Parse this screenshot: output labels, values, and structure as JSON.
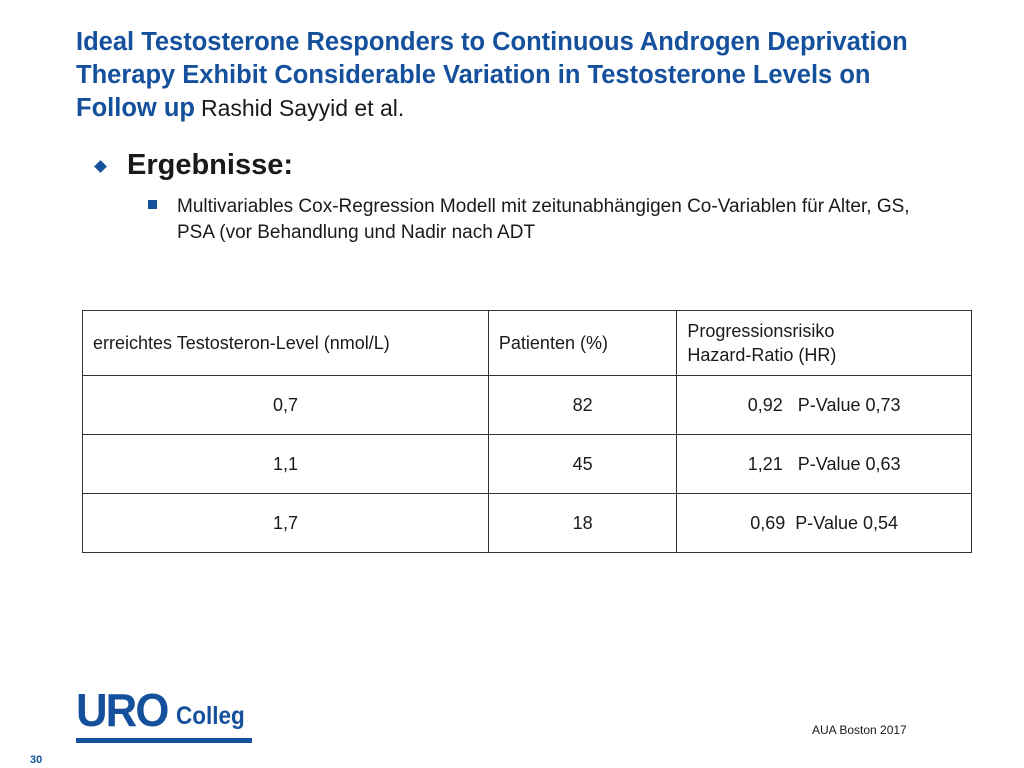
{
  "slide": {
    "title": "Ideal Testosterone Responders to Continuous Androgen Deprivation Therapy Exhibit Considerable Variation in Testosterone Levels on Follow up",
    "author": "Rashid Sayyid et al.",
    "section_heading": "Ergebnisse:",
    "sub_bullet": "Multivariables Cox-Regression Modell mit zeitunabhängigen Co-Variablen für Alter, GS, PSA (vor Behandlung und Nadir nach ADT"
  },
  "table": {
    "headers": {
      "level": "erreichtes Testosteron-Level (nmol/L)",
      "patients": "Patienten (%)",
      "risk_line1": "Progressionsrisiko",
      "risk_line2": "Hazard-Ratio (HR)"
    },
    "rows": [
      {
        "level": "0,7",
        "patients": "82",
        "hr": "0,92   P-Value 0,73"
      },
      {
        "level": "1,1",
        "patients": "45",
        "hr": "1,21   P-Value 0,63"
      },
      {
        "level": "1,7",
        "patients": "18",
        "hr": "0,69  P-Value 0,54"
      }
    ]
  },
  "footer": {
    "logo_uro": "URO",
    "logo_colleg": "Colleg",
    "source": "AUA Boston 2017",
    "page_number": "30"
  },
  "colors": {
    "accent": "#14509b",
    "text": "#1a1a1a"
  }
}
